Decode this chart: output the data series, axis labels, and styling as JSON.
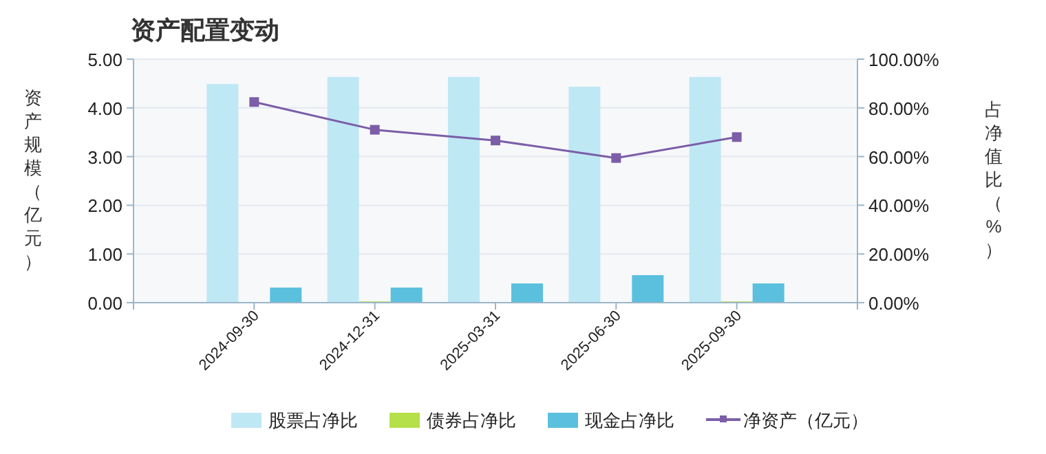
{
  "chart_data": {
    "type": "bar",
    "title": "资产配置变动",
    "ylabel": "资产规模（亿元）",
    "y2label": "占净值比（%）",
    "categories": [
      "2024-09-30",
      "2024-12-31",
      "2025-03-31",
      "2025-06-30",
      "2025-09-30"
    ],
    "series": [
      {
        "name": "股票占净比",
        "color": "#bfe8f5",
        "axis": "y2",
        "values": [
          89.8,
          92.7,
          92.7,
          88.7,
          92.7
        ]
      },
      {
        "name": "债券占净比",
        "color": "#b5e04a",
        "axis": "y2",
        "values": [
          0,
          0.5,
          0,
          0,
          0.5
        ]
      },
      {
        "name": "现金占净比",
        "color": "#5bc0de",
        "axis": "y2",
        "values": [
          6.2,
          6.2,
          7.9,
          11.3,
          7.9
        ]
      },
      {
        "name": "净资产（亿元）",
        "type": "line",
        "color": "#7b5ea7",
        "marker": "square",
        "values": [
          4.12,
          3.55,
          3.33,
          2.97,
          3.4
        ]
      }
    ],
    "ylim": [
      0,
      5
    ],
    "yticks": [
      {
        "value": 0,
        "label": "0.00"
      },
      {
        "value": 1,
        "label": "1.00"
      },
      {
        "value": 2,
        "label": "2.00"
      },
      {
        "value": 3,
        "label": "3.00"
      },
      {
        "value": 4,
        "label": "4.00"
      },
      {
        "value": 5,
        "label": "5.00"
      }
    ],
    "y2lim": [
      0,
      100
    ],
    "y2ticks": [
      {
        "value": 0,
        "label": "0.00%"
      },
      {
        "value": 20,
        "label": "20.00%"
      },
      {
        "value": 40,
        "label": "40.00%"
      },
      {
        "value": 60,
        "label": "60.00%"
      },
      {
        "value": 80,
        "label": "80.00%"
      },
      {
        "value": 100,
        "label": "100.00%"
      }
    ],
    "grid": "y",
    "legend": "bottom"
  }
}
